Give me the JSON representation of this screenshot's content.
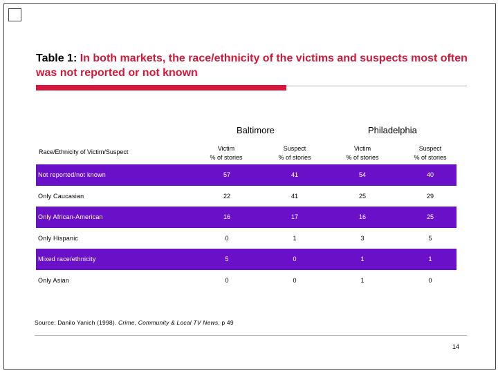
{
  "title": {
    "prefix": "Table 1:",
    "text": "In both markets, the race/ethnicity of the victims and suspects most often was not reported or not known"
  },
  "markets": [
    "Baltimore",
    "Philadelphia"
  ],
  "row_header": "Race/Ethnicity of Victim/Suspect",
  "columns": [
    {
      "l1": "Victim",
      "l2": "% of stories"
    },
    {
      "l1": "Suspect",
      "l2": "% of stories"
    },
    {
      "l1": "Victim",
      "l2": "% of stories"
    },
    {
      "l1": "Suspect",
      "l2": "% of stories"
    }
  ],
  "rows": [
    {
      "label": "Not reported/not known",
      "values": [
        "57",
        "41",
        "54",
        "40"
      ]
    },
    {
      "label": "Only Caucasian",
      "values": [
        "22",
        "41",
        "25",
        "29"
      ]
    },
    {
      "label": "Only African-American",
      "values": [
        "16",
        "17",
        "16",
        "25"
      ]
    },
    {
      "label": "Only Hispanic",
      "values": [
        "0",
        "1",
        "3",
        "5"
      ]
    },
    {
      "label": "Mixed race/ethnicity",
      "values": [
        "5",
        "0",
        "1",
        "1"
      ]
    },
    {
      "label": "Only Asian",
      "values": [
        "0",
        "0",
        "1",
        "0"
      ]
    }
  ],
  "source": {
    "prefix": "Source: Danilo Yanich (1998).",
    "italic": "Crime, Community & Local TV News",
    "suffix": ", p 49"
  },
  "page_number": "14",
  "colors": {
    "accent": "#d8173e",
    "row_fill": "#6a10c8"
  }
}
